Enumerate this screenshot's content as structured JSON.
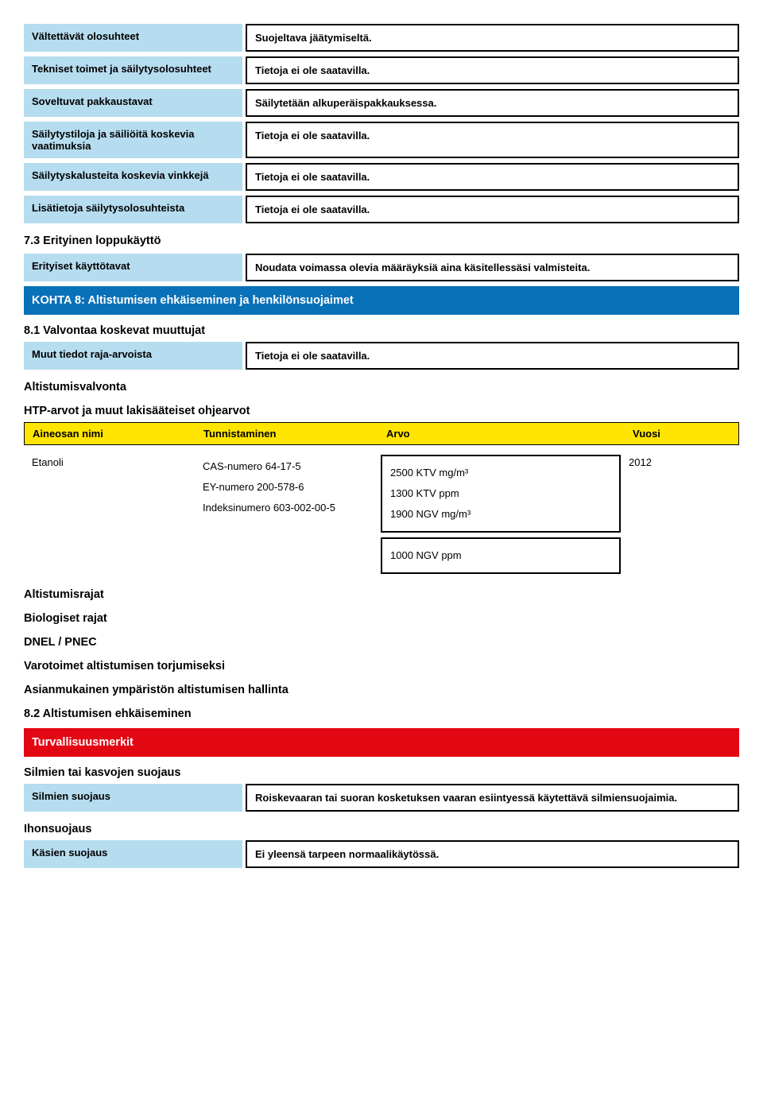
{
  "rows1": [
    {
      "label": "Vältettävät olosuhteet",
      "value": "Suojeltava jäätymiseltä."
    },
    {
      "label": "Tekniset toimet ja säilytysolosuhteet",
      "value": "Tietoja ei ole saatavilla."
    },
    {
      "label": "Soveltuvat pakkaustavat",
      "value": "Säilytetään alkuperäispakkauksessa."
    },
    {
      "label": "Säilytystiloja ja säiliöitä koskevia vaatimuksia",
      "value": "Tietoja ei ole saatavilla."
    },
    {
      "label": "Säilytyskalusteita koskevia vinkkejä",
      "value": "Tietoja ei ole saatavilla."
    },
    {
      "label": "Lisätietoja säilytysolosuhteista",
      "value": "Tietoja ei ole saatavilla."
    }
  ],
  "sec73": "7.3 Erityinen loppukäyttö",
  "row_erityiset": {
    "label": "Erityiset käyttötavat",
    "value": "Noudata voimassa olevia määräyksiä aina käsitellessäsi valmisteita."
  },
  "kohta8": "KOHTA 8: Altistumisen ehkäiseminen ja henkilönsuojaimet",
  "sec81": "8.1 Valvontaa koskevat muuttujat",
  "row_muut": {
    "label": "Muut tiedot raja-arvoista",
    "value": "Tietoja ei ole saatavilla."
  },
  "sub_alt": "Altistumisvalvonta",
  "sub_htp": "HTP-arvot ja muut lakisääteiset ohjearvot",
  "table_head": {
    "a": "Aineosan nimi",
    "b": "Tunnistaminen",
    "c": "Arvo",
    "d": "Vuosi"
  },
  "etanoli": {
    "name": "Etanoli",
    "ids": [
      "CAS-numero 64-17-5",
      "EY-numero 200-578-6",
      "Indeksinumero 603-002-00-5"
    ],
    "vals1": [
      "2500 KTV mg/m³",
      "1300 KTV ppm",
      "1900 NGV mg/m³"
    ],
    "vals2": [
      "1000 NGV ppm"
    ],
    "year": "2012"
  },
  "subs": [
    "Altistumisrajat",
    "Biologiset rajat",
    "DNEL / PNEC",
    "Varotoimet altistumisen torjumiseksi",
    "Asianmukainen ympäristön altistumisen hallinta"
  ],
  "sec82": "8.2 Altistumisen ehkäiseminen",
  "turva": "Turvallisuusmerkit",
  "sub_silmien": "Silmien tai kasvojen suojaus",
  "row_silmien": {
    "label": "Silmien suojaus",
    "value": "Roiskevaaran tai suoran kosketuksen vaaran esiintyessä käytettävä silmiensuojaimia."
  },
  "sub_ihon": "Ihonsuojaus",
  "row_kasien": {
    "label": "Käsien suojaus",
    "value": "Ei yleensä tarpeen normaalikäytössä."
  }
}
